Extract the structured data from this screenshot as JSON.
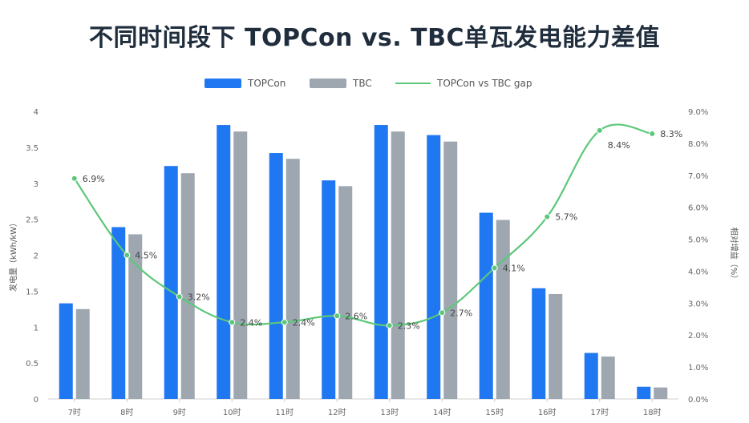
{
  "chart_data": {
    "type": "bar",
    "title": "不同时间段下 TOPCon vs. TBC单瓦发电能力差值",
    "categories": [
      "7时",
      "8时",
      "9时",
      "10时",
      "11时",
      "12时",
      "13时",
      "14时",
      "15时",
      "16时",
      "17时",
      "18时"
    ],
    "series": [
      {
        "name": "TOPCon",
        "type": "bar",
        "axis": "left",
        "color": "#1f77f2",
        "values": [
          1.33,
          2.39,
          3.24,
          3.81,
          3.42,
          3.04,
          3.81,
          3.67,
          2.59,
          1.54,
          0.64,
          0.17
        ]
      },
      {
        "name": "TBC",
        "type": "bar",
        "axis": "left",
        "color": "#9ea7b0",
        "values": [
          1.25,
          2.29,
          3.14,
          3.72,
          3.34,
          2.96,
          3.72,
          3.58,
          2.49,
          1.46,
          0.59,
          0.16
        ]
      },
      {
        "name": "TOPCon vs TBC gap",
        "type": "line",
        "axis": "right",
        "color": "#5cc77a",
        "values": [
          6.9,
          4.5,
          3.2,
          2.4,
          2.4,
          2.6,
          2.3,
          2.7,
          4.1,
          5.7,
          8.4,
          8.3
        ],
        "labels": [
          "6.9%",
          "4.5%",
          "3.2%",
          "2.4%",
          "2.4%",
          "2.6%",
          "2.3%",
          "2.7%",
          "4.1%",
          "5.7%",
          "8.4%",
          "8.3%"
        ]
      }
    ],
    "ylabel": "发电量（kWh/kW）",
    "y2label": "相对增益（%）",
    "ylim": [
      0,
      4
    ],
    "y2lim": [
      0,
      9
    ],
    "yticks": [
      "0",
      "0.5",
      "1",
      "1.5",
      "2",
      "2.5",
      "3",
      "3.5",
      "4"
    ],
    "y2ticks": [
      "0.0%",
      "1.0%",
      "2.0%",
      "3.0%",
      "4.0%",
      "5.0%",
      "6.0%",
      "7.0%",
      "8.0%",
      "9.0%"
    ],
    "legend_position": "top-center",
    "grid": false
  }
}
